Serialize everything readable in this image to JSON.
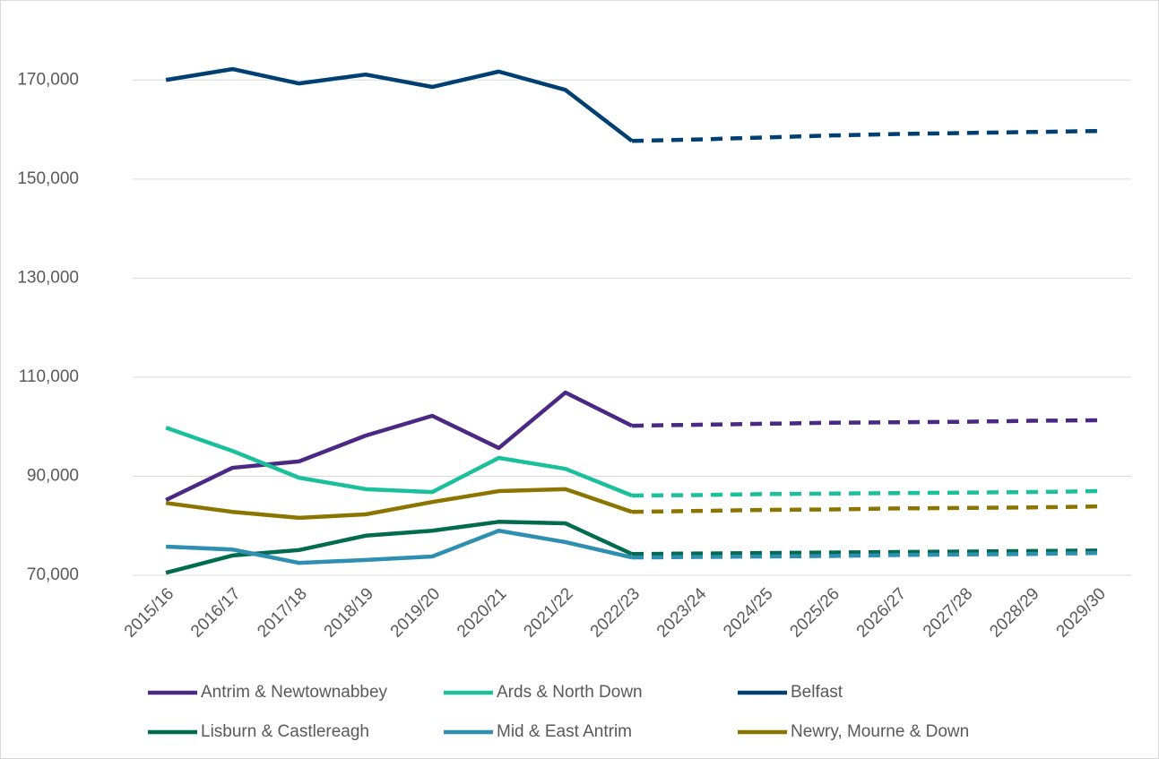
{
  "chart_data": {
    "type": "line",
    "categories": [
      "2015/16",
      "2016/17",
      "2017/18",
      "2018/19",
      "2019/20",
      "2020/21",
      "2021/22",
      "2022/23",
      "2023/24",
      "2024/25",
      "2025/26",
      "2026/27",
      "2027/28",
      "2028/29",
      "2029/30"
    ],
    "projection_from": "2022/23",
    "series": [
      {
        "name": "Antrim & Newtownabbey",
        "color": "#4b2884",
        "values": [
          85200,
          91700,
          93000,
          98200,
          102200,
          95700,
          106900,
          100200,
          100400,
          100600,
          100800,
          100900,
          101000,
          101200,
          101300
        ]
      },
      {
        "name": "Ards & North Down",
        "color": "#1abf9b",
        "values": [
          99800,
          95100,
          89700,
          87400,
          86800,
          93700,
          91500,
          86100,
          86200,
          86400,
          86500,
          86600,
          86700,
          86800,
          87000
        ]
      },
      {
        "name": "Belfast",
        "color": "#003f72",
        "values": [
          170000,
          172200,
          169300,
          171100,
          168600,
          171700,
          168000,
          157700,
          158000,
          158400,
          158800,
          159100,
          159300,
          159500,
          159700
        ]
      },
      {
        "name": "Lisburn & Castlereagh",
        "color": "#006b4f",
        "values": [
          70500,
          74000,
          75100,
          78000,
          79000,
          80800,
          80500,
          74300,
          74400,
          74500,
          74600,
          74700,
          74800,
          74900,
          75000
        ]
      },
      {
        "name": "Mid & East Antrim",
        "color": "#2e8fb0",
        "values": [
          75800,
          75200,
          72500,
          73100,
          73800,
          79000,
          76700,
          73600,
          73700,
          73800,
          73900,
          74100,
          74200,
          74300,
          74500
        ]
      },
      {
        "name": "Newry, Mourne & Down",
        "color": "#8c7400",
        "values": [
          84600,
          82800,
          81600,
          82300,
          84800,
          87000,
          87400,
          82800,
          83000,
          83200,
          83300,
          83500,
          83600,
          83700,
          83900
        ]
      }
    ],
    "ylim": [
      70000,
      180000
    ],
    "yticks": [
      {
        "value": 70000,
        "label": "70,000"
      },
      {
        "value": 90000,
        "label": "90,000"
      },
      {
        "value": 110000,
        "label": "110,000"
      },
      {
        "value": 130000,
        "label": "130,000"
      },
      {
        "value": 150000,
        "label": "150,000"
      },
      {
        "value": 170000,
        "label": "170,000"
      }
    ],
    "grid": true,
    "legend": "bottom"
  }
}
